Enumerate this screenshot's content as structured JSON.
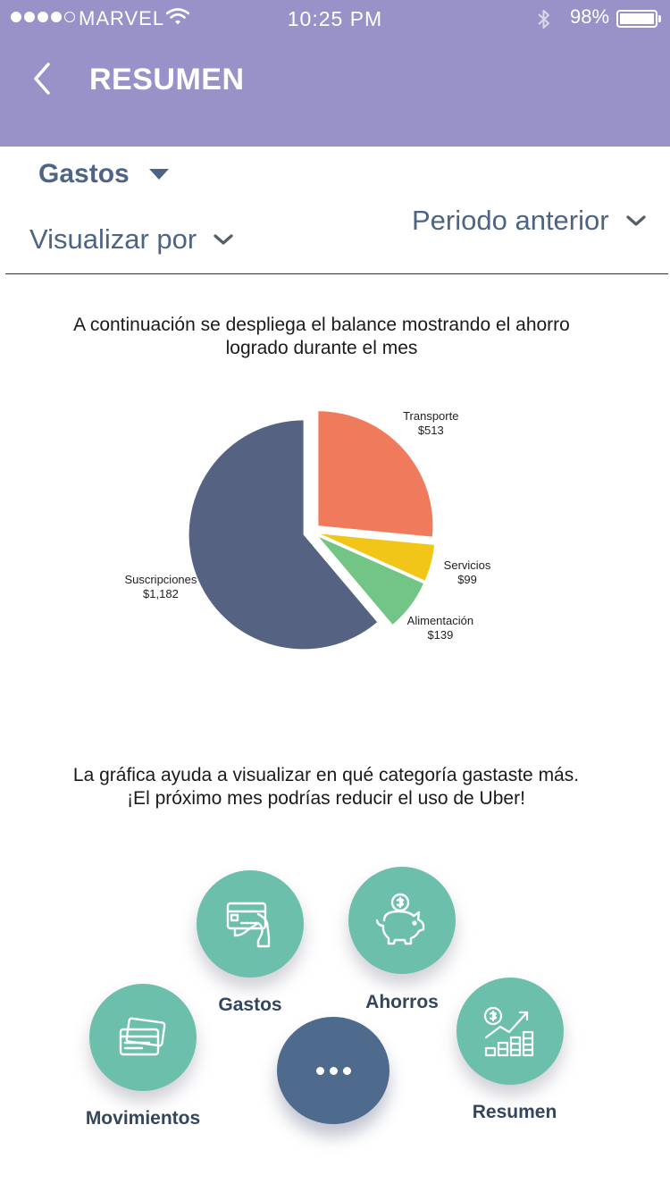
{
  "status_bar": {
    "carrier": "MARVEL",
    "time": "10:25 PM",
    "battery": "98%",
    "battery_level": 0.98,
    "signal_bars_filled": 4,
    "signal_bars_total": 5
  },
  "header": {
    "title": "RESUMEN",
    "background_color": "#9892c8",
    "back_icon": "chevron-left-icon"
  },
  "filters": {
    "category_label": "Gastos",
    "view_label": "Visualizar por",
    "period_label": "Periodo anterior"
  },
  "intro_text": "A continuación se despliega el balance mostrando el ahorro logrado durante el mes",
  "chart_data": {
    "type": "pie",
    "title": "",
    "slices": [
      {
        "name": "Transporte",
        "value": 513,
        "label": "$513",
        "color": "#f07b5c"
      },
      {
        "name": "Servicios",
        "value": 99,
        "label": "$99",
        "color": "#f1c619"
      },
      {
        "name": "Alimentación",
        "value": 139,
        "label": "$139",
        "color": "#72c584"
      },
      {
        "name": "Suscripciones",
        "value": 1182,
        "label": "$1,182",
        "color": "#556281"
      }
    ],
    "legend": "none"
  },
  "tip_text": {
    "line1": "La gráfica ayuda a visualizar en qué categoría gastaste más.",
    "line2": "¡El próximo mes podrías reducir el uso de Uber!"
  },
  "menu": {
    "items": [
      {
        "label": "Gastos",
        "icon": "credit-card-hand-icon"
      },
      {
        "label": "Ahorros",
        "icon": "piggy-bank-icon"
      },
      {
        "label": "Movimientos",
        "icon": "cards-icon"
      },
      {
        "label": "Resumen",
        "icon": "growth-chart-icon"
      }
    ],
    "more_icon": "more-dots-icon",
    "accent_color": "#6cbfab",
    "fab_color": "#4e6a8c"
  }
}
